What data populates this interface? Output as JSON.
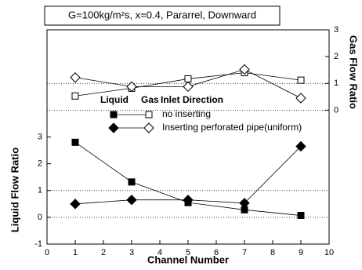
{
  "chart_data": {
    "type": "line",
    "title": "G=100kg/m²s, x=0.4, Pararrel, Downward",
    "x_label": "Channel Number",
    "y_label": "Liquid Flow Ratio",
    "y2_label": "Gas Flow Ratio",
    "xlim": [
      0,
      10
    ],
    "xticks": [
      0,
      1,
      2,
      3,
      4,
      5,
      6,
      7,
      8,
      9,
      10
    ],
    "ylim": [
      -1,
      7
    ],
    "yticks": [
      -1,
      0,
      1,
      2,
      3
    ],
    "y2lim": [
      -5,
      3
    ],
    "y2ticks": [
      0,
      1,
      2,
      3
    ],
    "ygrid": [
      0,
      1
    ],
    "y2grid": [
      0,
      1
    ],
    "legend": {
      "headers": [
        "Liquid",
        "Gas",
        "Inlet Direction"
      ],
      "entries": [
        "no inserting",
        "Inserting perforated pipe(uniform)"
      ]
    },
    "x": [
      1,
      3,
      5,
      7,
      9
    ],
    "series": [
      {
        "axis": "y",
        "marker": "square",
        "filled": true,
        "entry": 0,
        "color": "#000000",
        "values": [
          2.8,
          1.32,
          0.55,
          0.28,
          0.07
        ]
      },
      {
        "axis": "y",
        "marker": "diamond",
        "filled": true,
        "entry": 1,
        "color": "#000000",
        "values": [
          0.5,
          0.65,
          0.65,
          0.53,
          2.65
        ]
      },
      {
        "axis": "y2",
        "marker": "square",
        "filled": false,
        "entry": 0,
        "color": "#000000",
        "values": [
          0.53,
          0.82,
          1.17,
          1.4,
          1.12
        ]
      },
      {
        "axis": "y2",
        "marker": "diamond",
        "filled": false,
        "entry": 1,
        "color": "#000000",
        "values": [
          1.22,
          0.88,
          0.88,
          1.52,
          0.45
        ]
      }
    ]
  }
}
